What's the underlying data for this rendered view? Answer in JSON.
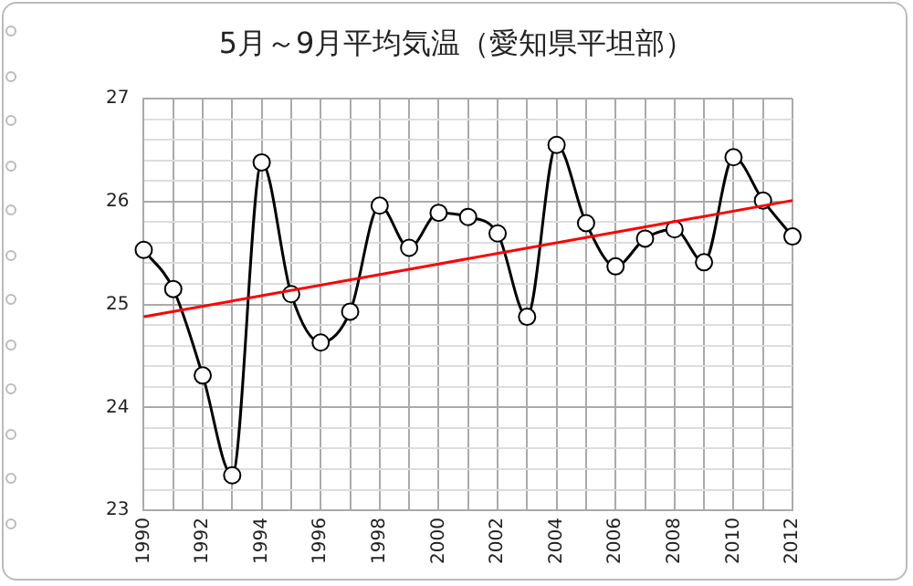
{
  "chart_data": {
    "type": "line",
    "title": "5月～9月平均気温（愛知県平坦部）",
    "x": [
      1990,
      1991,
      1992,
      1993,
      1994,
      1995,
      1996,
      1997,
      1998,
      1999,
      2000,
      2001,
      2002,
      2003,
      2004,
      2005,
      2006,
      2007,
      2008,
      2009,
      2010,
      2011,
      2012
    ],
    "series": [
      {
        "color": "#000000",
        "marker": "circle",
        "values": [
          25.53,
          25.15,
          24.31,
          23.34,
          26.38,
          25.1,
          24.63,
          24.93,
          25.96,
          25.55,
          25.89,
          25.85,
          25.69,
          24.88,
          26.55,
          25.79,
          25.37,
          25.64,
          25.73,
          25.41,
          26.43,
          26.01,
          25.66
        ]
      },
      {
        "type": "line",
        "color": "#ff0000",
        "marker": "none",
        "x": [
          1990,
          2012
        ],
        "values": [
          24.88,
          26.01
        ]
      }
    ],
    "xlim": [
      1990,
      2012
    ],
    "xticks": [
      1990,
      {
        "value": 1991,
        "label": null
      },
      1992,
      {
        "value": 1993,
        "label": null
      },
      1994,
      {
        "value": 1995,
        "label": null
      },
      1996,
      {
        "value": 1997,
        "label": null
      },
      1998,
      {
        "value": 1999,
        "label": null
      },
      2000,
      {
        "value": 2001,
        "label": null
      },
      2002,
      {
        "value": 2003,
        "label": null
      },
      2004,
      {
        "value": 2005,
        "label": null
      },
      2006,
      {
        "value": 2007,
        "label": null
      },
      2008,
      {
        "value": 2009,
        "label": null
      },
      2010,
      {
        "value": 2011,
        "label": null
      },
      2012
    ],
    "ylim": [
      23,
      27
    ],
    "yticks": [
      23,
      {
        "value": 23.2,
        "label": null
      },
      {
        "value": 23.4,
        "label": null
      },
      {
        "value": 23.6,
        "label": null
      },
      {
        "value": 23.8,
        "label": null
      },
      24,
      {
        "value": 24.2,
        "label": null
      },
      {
        "value": 24.4,
        "label": null
      },
      {
        "value": 24.6,
        "label": null
      },
      {
        "value": 24.8,
        "label": null
      },
      25,
      {
        "value": 25.2,
        "label": null
      },
      {
        "value": 25.4,
        "label": null
      },
      {
        "value": 25.6,
        "label": null
      },
      {
        "value": 25.8,
        "label": null
      },
      26,
      {
        "value": 26.2,
        "label": null
      },
      {
        "value": 26.4,
        "label": null
      },
      {
        "value": 26.6,
        "label": null
      },
      {
        "value": 26.8,
        "label": null
      },
      27
    ],
    "grid": true,
    "legend": false,
    "line_style": "solid"
  }
}
